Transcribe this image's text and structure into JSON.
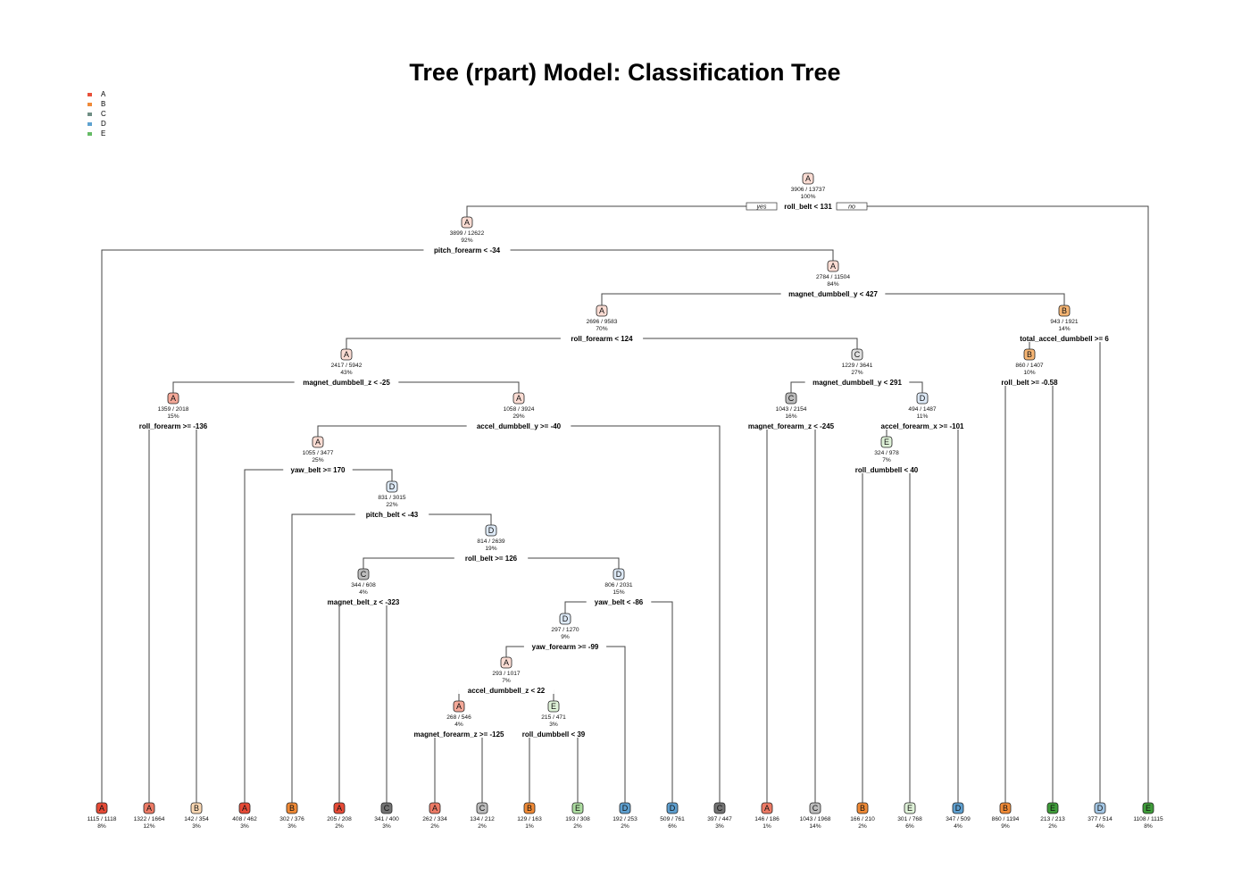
{
  "title": "Tree (rpart) Model: Classification Tree",
  "legend": [
    {
      "label": "A",
      "color": "#e8503a"
    },
    {
      "label": "B",
      "color": "#ef8a3a"
    },
    {
      "label": "C",
      "color": "#6f8e84"
    },
    {
      "label": "D",
      "color": "#5ea2d0"
    },
    {
      "label": "E",
      "color": "#66bb66"
    }
  ],
  "root_branch_labels": {
    "yes": "yes",
    "no": "no"
  },
  "nodes": [
    {
      "id": "n0",
      "cls": "A",
      "counts": "3906 / 13737",
      "pct": "100%",
      "shade": "light",
      "split": "roll_belt < 131"
    },
    {
      "id": "n1",
      "cls": "A",
      "counts": "3899 / 12622",
      "pct": "92%",
      "shade": "light",
      "split": "pitch_forearm < -34"
    },
    {
      "id": "n2",
      "cls": "A",
      "counts": "2784 / 11504",
      "pct": "84%",
      "shade": "light",
      "split": "magnet_dumbbell_y < 427"
    },
    {
      "id": "n3",
      "cls": "A",
      "counts": "2696 / 9583",
      "pct": "70%",
      "shade": "light",
      "split": "roll_forearm < 124"
    },
    {
      "id": "n4",
      "cls": "B",
      "counts": "943 / 1921",
      "pct": "14%",
      "shade": "mid",
      "split": "total_accel_dumbbell >= 6"
    },
    {
      "id": "n5",
      "cls": "A",
      "counts": "2417 / 5942",
      "pct": "43%",
      "shade": "light",
      "split": "magnet_dumbbell_z < -25"
    },
    {
      "id": "n6",
      "cls": "C",
      "counts": "1229 / 3641",
      "pct": "27%",
      "shade": "light",
      "split": "magnet_dumbbell_y < 291"
    },
    {
      "id": "n7",
      "cls": "B",
      "counts": "860 / 1407",
      "pct": "10%",
      "shade": "mid",
      "split": "roll_belt >= -0.58"
    },
    {
      "id": "n8",
      "cls": "A",
      "counts": "1359 / 2018",
      "pct": "15%",
      "shade": "mid",
      "split": "roll_forearm >= -136"
    },
    {
      "id": "n9",
      "cls": "A",
      "counts": "1058 / 3924",
      "pct": "29%",
      "shade": "light",
      "split": "accel_dumbbell_y >= -40"
    },
    {
      "id": "n10",
      "cls": "C",
      "counts": "1043 / 2154",
      "pct": "16%",
      "shade": "mid",
      "split": "magnet_forearm_z < -245"
    },
    {
      "id": "n11",
      "cls": "D",
      "counts": "494 / 1487",
      "pct": "11%",
      "shade": "light",
      "split": "accel_forearm_x >= -101"
    },
    {
      "id": "n12",
      "cls": "A",
      "counts": "1055 / 3477",
      "pct": "25%",
      "shade": "light",
      "split": "yaw_belt >= 170"
    },
    {
      "id": "n13",
      "cls": "E",
      "counts": "324 / 978",
      "pct": "7%",
      "shade": "light",
      "split": "roll_dumbbell < 40"
    },
    {
      "id": "n14",
      "cls": "D",
      "counts": "831 / 3015",
      "pct": "22%",
      "shade": "light",
      "split": "pitch_belt < -43"
    },
    {
      "id": "n15",
      "cls": "D",
      "counts": "814 / 2639",
      "pct": "19%",
      "shade": "light",
      "split": "roll_belt >= 126"
    },
    {
      "id": "n16",
      "cls": "C",
      "counts": "344 / 608",
      "pct": "4%",
      "shade": "mid",
      "split": "magnet_belt_z < -323"
    },
    {
      "id": "n17",
      "cls": "D",
      "counts": "806 / 2031",
      "pct": "15%",
      "shade": "light",
      "split": "yaw_belt < -86"
    },
    {
      "id": "n18",
      "cls": "D",
      "counts": "297 / 1270",
      "pct": "9%",
      "shade": "light",
      "split": "yaw_forearm >= -99"
    },
    {
      "id": "n19",
      "cls": "A",
      "counts": "293 / 1017",
      "pct": "7%",
      "shade": "light",
      "split": "accel_dumbbell_z < 22"
    },
    {
      "id": "n20",
      "cls": "A",
      "counts": "268 / 546",
      "pct": "4%",
      "shade": "mid",
      "split": "magnet_forearm_z >= -125"
    },
    {
      "id": "n21",
      "cls": "E",
      "counts": "215 / 471",
      "pct": "3%",
      "shade": "light",
      "split": "roll_dumbbell < 39"
    }
  ],
  "leaves": [
    {
      "id": "L1",
      "cls": "A",
      "counts": "1115 / 1118",
      "pct": "8%",
      "shade": "dark"
    },
    {
      "id": "L2",
      "cls": "A",
      "counts": "1322 / 1664",
      "pct": "12%",
      "shade": "darkmid"
    },
    {
      "id": "L3",
      "cls": "B",
      "counts": "142 / 354",
      "pct": "3%",
      "shade": "light"
    },
    {
      "id": "L4",
      "cls": "A",
      "counts": "408 / 462",
      "pct": "3%",
      "shade": "dark"
    },
    {
      "id": "L5",
      "cls": "B",
      "counts": "302 / 376",
      "pct": "3%",
      "shade": "darkmid"
    },
    {
      "id": "L6",
      "cls": "A",
      "counts": "205 / 208",
      "pct": "2%",
      "shade": "dark"
    },
    {
      "id": "L7",
      "cls": "C",
      "counts": "341 / 400",
      "pct": "3%",
      "shade": "dark"
    },
    {
      "id": "L8",
      "cls": "A",
      "counts": "262 / 334",
      "pct": "2%",
      "shade": "darkmid"
    },
    {
      "id": "L9",
      "cls": "C",
      "counts": "134 / 212",
      "pct": "2%",
      "shade": "mid"
    },
    {
      "id": "L10",
      "cls": "B",
      "counts": "129 / 163",
      "pct": "1%",
      "shade": "darkmid"
    },
    {
      "id": "L11",
      "cls": "E",
      "counts": "193 / 308",
      "pct": "2%",
      "shade": "mid"
    },
    {
      "id": "L12",
      "cls": "D",
      "counts": "192 / 253",
      "pct": "2%",
      "shade": "darkmid"
    },
    {
      "id": "L13",
      "cls": "D",
      "counts": "509 / 761",
      "pct": "6%",
      "shade": "darkmid"
    },
    {
      "id": "L14",
      "cls": "C",
      "counts": "397 / 447",
      "pct": "3%",
      "shade": "dark"
    },
    {
      "id": "L15",
      "cls": "A",
      "counts": "146 / 186",
      "pct": "1%",
      "shade": "darkmid"
    },
    {
      "id": "L16",
      "cls": "C",
      "counts": "1043 / 1968",
      "pct": "14%",
      "shade": "mid"
    },
    {
      "id": "L17",
      "cls": "B",
      "counts": "166 / 210",
      "pct": "2%",
      "shade": "darkmid"
    },
    {
      "id": "L18",
      "cls": "E",
      "counts": "301 / 768",
      "pct": "6%",
      "shade": "light"
    },
    {
      "id": "L19",
      "cls": "D",
      "counts": "347 / 509",
      "pct": "4%",
      "shade": "darkmid"
    },
    {
      "id": "L20",
      "cls": "B",
      "counts": "860 / 1194",
      "pct": "9%",
      "shade": "darkmid"
    },
    {
      "id": "L21",
      "cls": "E",
      "counts": "213 / 213",
      "pct": "2%",
      "shade": "dark"
    },
    {
      "id": "L22",
      "cls": "D",
      "counts": "377 / 514",
      "pct": "4%",
      "shade": "mid"
    },
    {
      "id": "L23",
      "cls": "E",
      "counts": "1108 / 1115",
      "pct": "8%",
      "shade": "dark"
    }
  ]
}
